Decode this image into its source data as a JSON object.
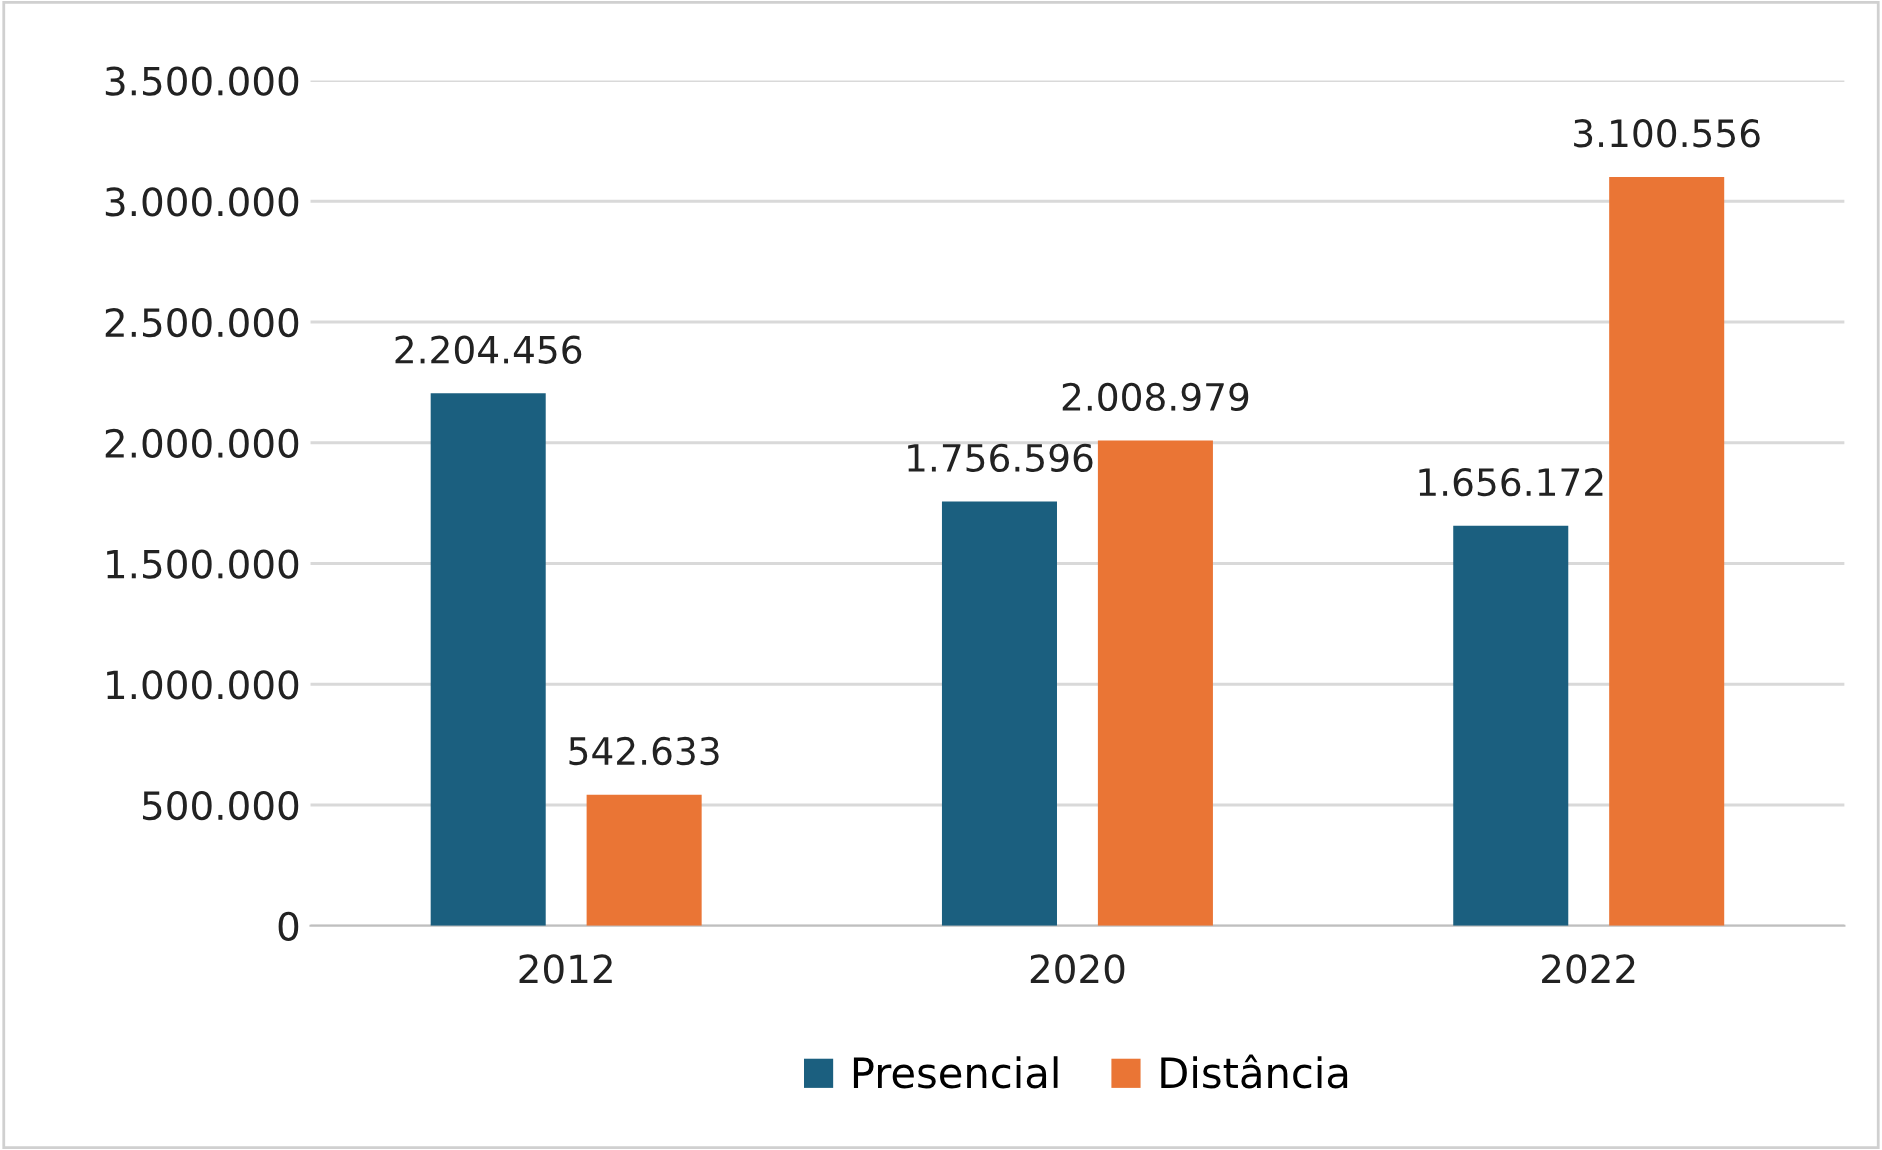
{
  "chart_data": {
    "type": "bar",
    "categories": [
      "2012",
      "2020",
      "2022"
    ],
    "series": [
      {
        "name": "Presencial",
        "color": "#1b5f7f",
        "values": [
          2204456,
          1756596,
          1656172
        ],
        "value_labels": [
          "2.204.456",
          "1.756.596",
          "1.656.172"
        ]
      },
      {
        "name": "Distância",
        "color": "#ea7535",
        "values": [
          542633,
          2008979,
          3100556
        ],
        "value_labels": [
          "542.633",
          "2.008.979",
          "3.100.556"
        ]
      }
    ],
    "ylim": [
      0,
      3500000
    ],
    "yticks": [
      0,
      {
        "value": 500000,
        "label": "500.000"
      },
      {
        "value": 1000000,
        "label": "1.000.000"
      },
      {
        "value": 1500000,
        "label": "1.500.000"
      },
      {
        "value": 2000000,
        "label": "2.000.000"
      },
      {
        "value": 2500000,
        "label": "2.500.000"
      },
      {
        "value": 3000000,
        "label": "3.000.000"
      },
      {
        "value": 3500000,
        "label": "3.500.000"
      }
    ],
    "grid": "y",
    "legend": "bottom"
  }
}
